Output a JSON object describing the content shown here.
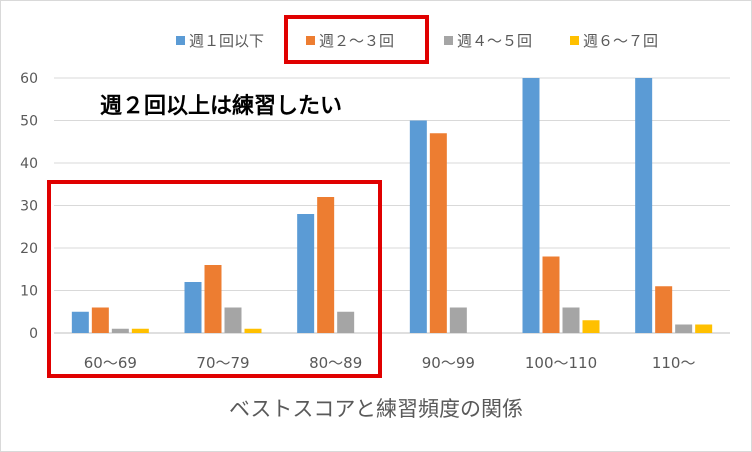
{
  "chart_data": {
    "type": "bar",
    "title": "ベストスコアと練習頻度の関係",
    "categories": [
      "60～69",
      "70～79",
      "80～89",
      "90～99",
      "100～110",
      "110～"
    ],
    "series": [
      {
        "name": "週１回以下",
        "color": "#5b9bd5",
        "values": [
          5,
          12,
          28,
          50,
          60,
          60
        ]
      },
      {
        "name": "週２～３回",
        "color": "#ed7d31",
        "values": [
          6,
          16,
          32,
          47,
          18,
          11
        ]
      },
      {
        "name": "週４～５回",
        "color": "#a5a5a5",
        "values": [
          1,
          6,
          5,
          6,
          6,
          2
        ]
      },
      {
        "name": "週６～７回",
        "color": "#ffc000",
        "values": [
          1,
          1,
          0,
          0,
          3,
          2
        ]
      }
    ],
    "yticks": [
      "0",
      "10",
      "20",
      "30",
      "40",
      "50",
      "60"
    ],
    "ylim": [
      0,
      60
    ],
    "grid": true,
    "legend_position": "top",
    "annotation": "週２回以上は練習したい",
    "highlight_color": "#e00000"
  }
}
